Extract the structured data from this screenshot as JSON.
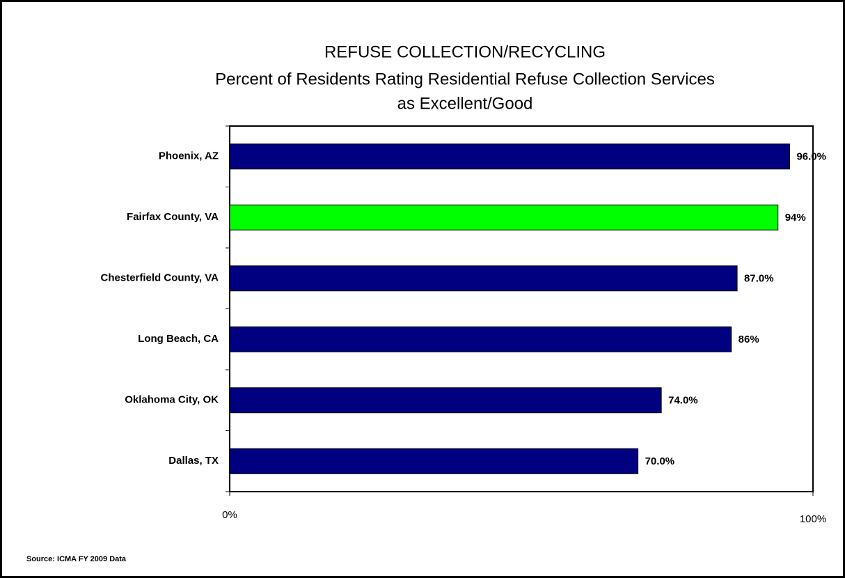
{
  "chart_data": {
    "type": "barh",
    "title": [
      "REFUSE COLLECTION/RECYCLING",
      "Percent of Residents Rating Residential Refuse Collection Services",
      "as Excellent/Good"
    ],
    "categories": [
      "Phoenix, AZ",
      "Fairfax County, VA",
      "Chesterfield County, VA",
      "Long Beach, CA",
      "Oklahoma City, OK",
      "Dallas, TX"
    ],
    "values": [
      96,
      94,
      87,
      86,
      74,
      70
    ],
    "value_labels": [
      "96.0%",
      "94%",
      "87.0%",
      "86%",
      "74.0%",
      "70.0%"
    ],
    "colors": [
      "#000080",
      "#00ff00",
      "#000080",
      "#000080",
      "#000080",
      "#000080"
    ],
    "xlim": [
      0,
      100
    ],
    "xticks": [
      {
        "value": 0,
        "label": "0%"
      },
      {
        "value": 100,
        "label": "100%"
      }
    ],
    "source": "Source:  ICMA FY 2009 Data"
  }
}
